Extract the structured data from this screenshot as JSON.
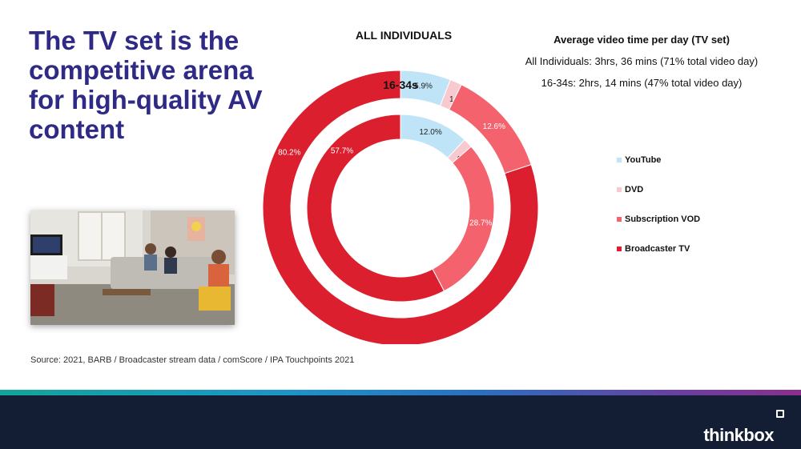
{
  "slide": {
    "title": "The TV set is the competitive arena for high-quality AV content",
    "source": "Source: 2021, BARB / Broadcaster stream data / comScore / IPA Touchpoints 2021",
    "logo": "thinkbox"
  },
  "summary": {
    "title": "Average video time per day (TV set)",
    "lines": [
      "All Individuals: 3hrs, 36 mins (71% total video day)",
      "16-34s: 2hrs, 14 mins (47% total video day)"
    ]
  },
  "colors": {
    "title": "#2e2a86",
    "youtube": "#bfe4f7",
    "dvd": "#f8c9cf",
    "svod": "#f4626d",
    "broadcaster": "#dc1f2e",
    "footer": "#131d33"
  },
  "chart_data": {
    "type": "pie",
    "variant": "nested-donut",
    "categories": [
      "YouTube",
      "DVD",
      "Subscription VOD",
      "Broadcaster TV"
    ],
    "series": [
      {
        "name": "ALL INDIVIDUALS",
        "values": [
          5.9,
          1.4,
          12.6,
          80.2
        ],
        "labels": [
          "5.9%",
          "1.4%",
          "12.6%",
          "80.2%"
        ]
      },
      {
        "name": "16-34s",
        "values": [
          12.0,
          1.6,
          28.7,
          57.7
        ],
        "labels": [
          "12.0%",
          "1.6%",
          "28.7%",
          "57.7%"
        ]
      }
    ],
    "legend": {
      "position": "right",
      "entries": [
        "YouTube",
        "DVD",
        "Subscription VOD",
        "Broadcaster TV"
      ]
    }
  }
}
